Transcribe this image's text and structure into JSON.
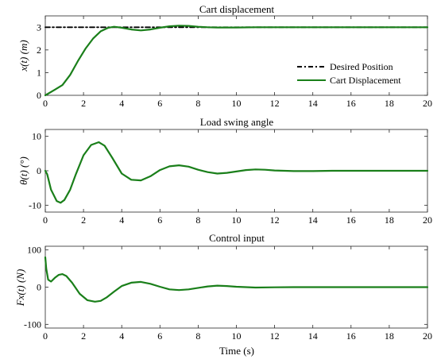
{
  "colors": {
    "cart": "#1a7f1a",
    "desired": "#000000"
  },
  "chart_data": [
    {
      "type": "line",
      "title": "Cart displacement",
      "xlabel": "",
      "ylabel": "x(t)  (m)",
      "xlim": [
        0,
        20
      ],
      "ylim": [
        0,
        3.5
      ],
      "xticks": [
        0,
        2,
        4,
        6,
        8,
        10,
        12,
        14,
        16,
        18,
        20
      ],
      "yticks": [
        0,
        1,
        2,
        3
      ],
      "legend": "bottom-right",
      "series": [
        {
          "name": "Desired Position",
          "style": "dash-dot",
          "color": "#000000",
          "x": [
            0,
            20
          ],
          "y": [
            3,
            3
          ]
        },
        {
          "name": "Cart Displacement",
          "style": "solid",
          "color": "#1a7f1a",
          "x": [
            0,
            0.5,
            0.9,
            1.3,
            1.7,
            2.1,
            2.5,
            2.9,
            3.3,
            3.6,
            4.0,
            4.5,
            5.0,
            5.5,
            6.0,
            6.5,
            7.0,
            7.5,
            8.0,
            8.5,
            9.0,
            10.0,
            11.0,
            12.0,
            14.0,
            16.0,
            18.0,
            20.0
          ],
          "y": [
            0,
            0.25,
            0.45,
            0.9,
            1.5,
            2.05,
            2.5,
            2.82,
            2.98,
            3.02,
            2.98,
            2.9,
            2.86,
            2.9,
            2.98,
            3.04,
            3.07,
            3.06,
            3.02,
            3.0,
            2.99,
            2.99,
            3.0,
            3.0,
            3.0,
            3.0,
            3.0,
            3.0
          ]
        }
      ]
    },
    {
      "type": "line",
      "title": "Load swing angle",
      "xlabel": "",
      "ylabel": "θ(t)  (°)",
      "xlim": [
        0,
        20
      ],
      "ylim": [
        -12,
        12
      ],
      "xticks": [
        0,
        2,
        4,
        6,
        8,
        10,
        12,
        14,
        16,
        18,
        20
      ],
      "yticks": [
        -10,
        0,
        10
      ],
      "series": [
        {
          "name": "",
          "style": "solid",
          "color": "#1a7f1a",
          "x": [
            0,
            0.1,
            0.3,
            0.6,
            0.8,
            1.0,
            1.3,
            1.6,
            2.0,
            2.4,
            2.8,
            3.1,
            3.5,
            4.0,
            4.5,
            5.0,
            5.5,
            6.0,
            6.5,
            7.0,
            7.5,
            8.0,
            8.5,
            9.0,
            9.5,
            10.0,
            10.5,
            11.0,
            11.5,
            12.0,
            13.0,
            14.0,
            15.0,
            16.0,
            17.0,
            18.0,
            19.0,
            20.0
          ],
          "y": [
            0,
            -1.0,
            -5.5,
            -8.8,
            -9.3,
            -8.5,
            -5.5,
            -1.0,
            4.5,
            7.5,
            8.3,
            7.3,
            3.8,
            -0.8,
            -2.6,
            -2.8,
            -1.6,
            0.2,
            1.3,
            1.6,
            1.2,
            0.3,
            -0.4,
            -0.8,
            -0.6,
            -0.2,
            0.2,
            0.4,
            0.3,
            0.1,
            -0.1,
            -0.1,
            0.0,
            0.0,
            0.0,
            0.0,
            0.0,
            0.0
          ]
        }
      ]
    },
    {
      "type": "line",
      "title": "Control input",
      "xlabel": "Time (s)",
      "ylabel": "Fx(t)  (N)",
      "xlim": [
        0,
        20
      ],
      "ylim": [
        -110,
        110
      ],
      "xticks": [
        0,
        2,
        4,
        6,
        8,
        10,
        12,
        14,
        16,
        18,
        20
      ],
      "yticks": [
        -100,
        0,
        100
      ],
      "series": [
        {
          "name": "",
          "style": "solid",
          "color": "#1a7f1a",
          "x": [
            0,
            0.05,
            0.15,
            0.3,
            0.5,
            0.7,
            0.9,
            1.1,
            1.4,
            1.8,
            2.2,
            2.6,
            2.9,
            3.2,
            3.6,
            4.0,
            4.5,
            5.0,
            5.5,
            6.0,
            6.5,
            7.0,
            7.5,
            8.0,
            8.5,
            9.0,
            9.5,
            10.0,
            11.0,
            12.0,
            13.0,
            14.0,
            16.0,
            18.0,
            20.0
          ],
          "y": [
            80,
            50,
            20,
            15,
            25,
            33,
            35,
            30,
            12,
            -18,
            -35,
            -39,
            -37,
            -28,
            -12,
            3,
            12,
            14,
            9,
            1,
            -6,
            -8,
            -6,
            -2,
            2,
            4,
            3,
            1,
            -1,
            -0.5,
            0,
            0,
            0,
            0,
            0
          ]
        }
      ]
    }
  ],
  "legend": {
    "desired_label": "Desired Position",
    "cart_label": "Cart Displacement"
  }
}
